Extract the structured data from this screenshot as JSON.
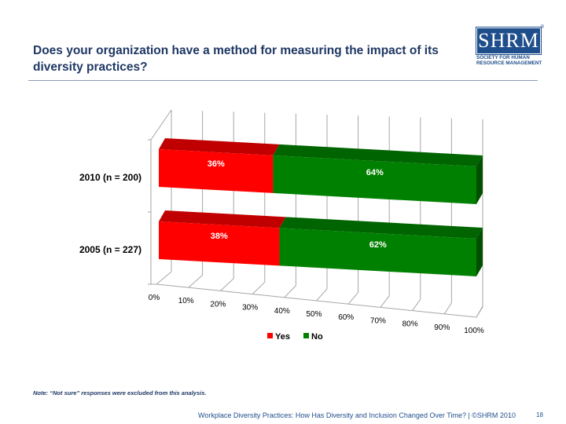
{
  "slide": {
    "title": "Does your organization have a method for measuring the impact of its diversity practices?",
    "note": "Note: “Not sure” responses were excluded from this analysis.",
    "footer": "Workplace Diversity Practices: How Has Diversity and Inclusion Changed Over Time? | ©SHRM 2010",
    "page_number": "18"
  },
  "logo": {
    "mark": "SHRM",
    "registered": "®",
    "line1": "SOCIETY FOR HUMAN",
    "line2": "RESOURCE MANAGEMENT"
  },
  "colors": {
    "yes": "#ff0000",
    "yes_top": "#c00000",
    "no": "#008000",
    "no_top": "#006400",
    "no_side": "#005000",
    "title": "#1f3864",
    "footer": "#1f4e8c"
  },
  "chart_data": {
    "type": "bar",
    "orientation": "horizontal",
    "stacked": true,
    "percent": true,
    "three_d": true,
    "categories": [
      "2010 (n = 200)",
      "2005 (n = 227)"
    ],
    "series": [
      {
        "name": "Yes",
        "values": [
          36,
          38
        ],
        "labels": [
          "36%",
          "38%"
        ]
      },
      {
        "name": "No",
        "values": [
          64,
          62
        ],
        "labels": [
          "64%",
          "62%"
        ]
      }
    ],
    "x_ticks": [
      "0%",
      "10%",
      "20%",
      "30%",
      "40%",
      "50%",
      "60%",
      "70%",
      "80%",
      "90%",
      "100%"
    ],
    "xlim": [
      0,
      100
    ],
    "grid": true,
    "legend": "bottom"
  }
}
